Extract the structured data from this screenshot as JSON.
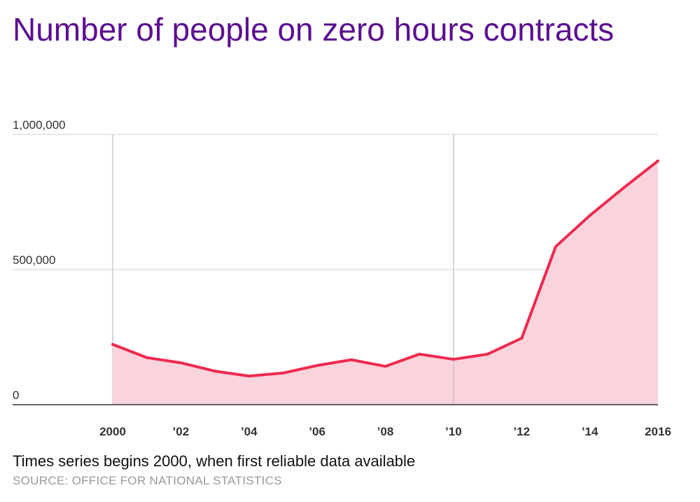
{
  "chart_data": {
    "type": "area",
    "title": "Number of people on zero hours contracts",
    "x": [
      2000,
      2001,
      2002,
      2003,
      2004,
      2005,
      2006,
      2007,
      2008,
      2009,
      2010,
      2011,
      2012,
      2013,
      2014,
      2015,
      2016
    ],
    "values": [
      223000,
      174000,
      155000,
      124000,
      106000,
      117000,
      145000,
      166000,
      142000,
      187000,
      168000,
      187000,
      246000,
      585000,
      700000,
      803000,
      902000
    ],
    "xlim": [
      2000,
      2016
    ],
    "ylim": [
      0,
      1000000
    ],
    "x_ticks": [
      2000,
      2002,
      2004,
      2006,
      2008,
      2010,
      2012,
      2014,
      2016
    ],
    "x_tick_labels": [
      "2000",
      "’02",
      "’04",
      "’06",
      "’08",
      "’10",
      "’12",
      "’14",
      "2016"
    ],
    "y_ticks": [
      0,
      500000,
      1000000
    ],
    "y_tick_labels": [
      "0",
      "500,000",
      "1,000,000"
    ],
    "xlabel": "",
    "ylabel": "",
    "grid": true,
    "line_color": "#ee2a4f",
    "fill_color": "#fad4dc",
    "title_color": "#5b0f8f"
  },
  "note": "Times series begins 2000, when first reliable data available",
  "source": "SOURCE: OFFICE FOR NATIONAL STATISTICS"
}
